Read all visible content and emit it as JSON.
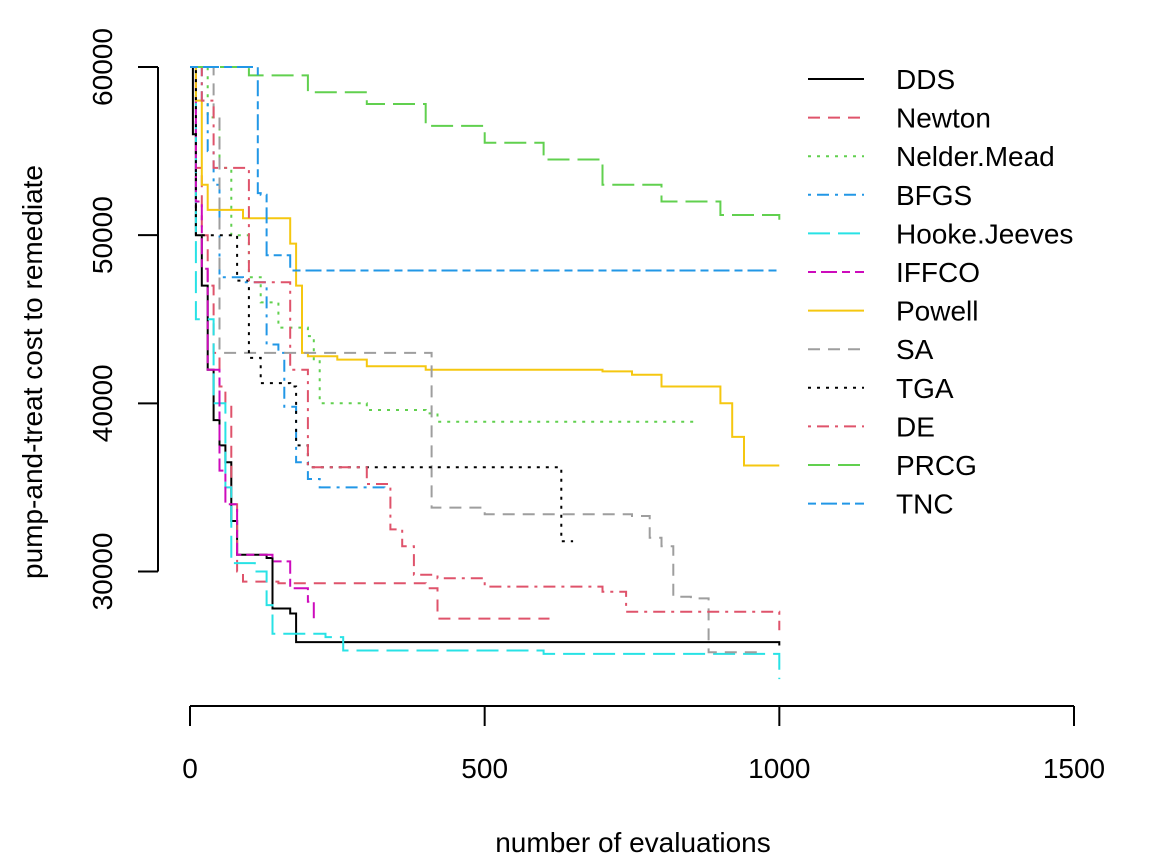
{
  "chart_data": {
    "type": "line",
    "title": "",
    "xlabel": "number of evaluations",
    "ylabel": "pump-and-treat cost to remediate",
    "xlim": [
      0,
      1500
    ],
    "ylim": [
      22000,
      60000
    ],
    "xticks": [
      0,
      500,
      1000,
      1500
    ],
    "yticks": [
      30000,
      40000,
      50000,
      60000
    ],
    "x_tick_labels": [
      "0",
      "500",
      "1000",
      "1500"
    ],
    "y_tick_labels": [
      "30000",
      "40000",
      "50000",
      "60000"
    ],
    "grid": false,
    "legend_position": "top-right",
    "series": [
      {
        "name": "DDS",
        "color": "#000000",
        "dash": "solid",
        "points": [
          [
            0,
            60000
          ],
          [
            5,
            56000
          ],
          [
            10,
            50000
          ],
          [
            20,
            47000
          ],
          [
            30,
            42000
          ],
          [
            40,
            39000
          ],
          [
            50,
            37500
          ],
          [
            60,
            36500
          ],
          [
            70,
            33000
          ],
          [
            80,
            31000
          ],
          [
            130,
            30800
          ],
          [
            140,
            27800
          ],
          [
            170,
            27500
          ],
          [
            180,
            25800
          ],
          [
            1000,
            25600
          ]
        ]
      },
      {
        "name": "Newton",
        "color": "#DF536B",
        "dash": "dashed",
        "points": [
          [
            0,
            60000
          ],
          [
            10,
            54000
          ],
          [
            20,
            50000
          ],
          [
            30,
            47000
          ],
          [
            40,
            43000
          ],
          [
            50,
            41000
          ],
          [
            60,
            40000
          ],
          [
            70,
            34000
          ],
          [
            80,
            30000
          ],
          [
            90,
            29400
          ],
          [
            150,
            29300
          ],
          [
            400,
            29000
          ],
          [
            420,
            27200
          ],
          [
            610,
            27200
          ]
        ]
      },
      {
        "name": "Nelder.Mead",
        "color": "#61D04F",
        "dash": "dotted",
        "points": [
          [
            0,
            60000
          ],
          [
            30,
            57000
          ],
          [
            50,
            54000
          ],
          [
            70,
            50000
          ],
          [
            100,
            47500
          ],
          [
            120,
            46000
          ],
          [
            150,
            44500
          ],
          [
            200,
            44000
          ],
          [
            210,
            42500
          ],
          [
            220,
            40000
          ],
          [
            300,
            39600
          ],
          [
            400,
            39400
          ],
          [
            420,
            38900
          ],
          [
            860,
            38800
          ]
        ]
      },
      {
        "name": "BFGS",
        "color": "#2297E6",
        "dash": "dashdot",
        "points": [
          [
            0,
            60000
          ],
          [
            20,
            58000
          ],
          [
            30,
            55000
          ],
          [
            40,
            53000
          ],
          [
            50,
            47500
          ],
          [
            80,
            47500
          ],
          [
            90,
            47200
          ],
          [
            120,
            47200
          ],
          [
            130,
            43500
          ],
          [
            150,
            43000
          ],
          [
            160,
            39800
          ],
          [
            180,
            36500
          ],
          [
            200,
            35500
          ],
          [
            220,
            35000
          ],
          [
            330,
            34900
          ]
        ]
      },
      {
        "name": "Hooke.Jeeves",
        "color": "#28E2E5",
        "dash": "longdash",
        "points": [
          [
            0,
            60000
          ],
          [
            10,
            45000
          ],
          [
            30,
            45000
          ],
          [
            40,
            40000
          ],
          [
            60,
            35000
          ],
          [
            70,
            30500
          ],
          [
            110,
            30000
          ],
          [
            130,
            28000
          ],
          [
            140,
            26300
          ],
          [
            230,
            26100
          ],
          [
            260,
            25300
          ],
          [
            600,
            25100
          ],
          [
            1000,
            23600
          ]
        ]
      },
      {
        "name": "IFFCO",
        "color": "#CD0BBC",
        "dash": "twodash",
        "points": [
          [
            0,
            60000
          ],
          [
            10,
            52000
          ],
          [
            20,
            48000
          ],
          [
            30,
            42000
          ],
          [
            50,
            36000
          ],
          [
            60,
            34000
          ],
          [
            80,
            31000
          ],
          [
            140,
            30600
          ],
          [
            170,
            29000
          ],
          [
            200,
            28200
          ],
          [
            210,
            27100
          ]
        ]
      },
      {
        "name": "Powell",
        "color": "#F5C710",
        "dash": "solid",
        "points": [
          [
            0,
            60000
          ],
          [
            10,
            58000
          ],
          [
            20,
            53000
          ],
          [
            30,
            51500
          ],
          [
            90,
            51000
          ],
          [
            160,
            51000
          ],
          [
            170,
            49500
          ],
          [
            180,
            47000
          ],
          [
            190,
            43000
          ],
          [
            200,
            42800
          ],
          [
            250,
            42600
          ],
          [
            300,
            42200
          ],
          [
            400,
            42000
          ],
          [
            700,
            41900
          ],
          [
            750,
            41700
          ],
          [
            800,
            41000
          ],
          [
            880,
            41000
          ],
          [
            900,
            40000
          ],
          [
            920,
            38000
          ],
          [
            940,
            36300
          ],
          [
            1000,
            36300
          ]
        ]
      },
      {
        "name": "SA",
        "color": "#9E9E9E",
        "dash": "dashed",
        "points": [
          [
            0,
            60000
          ],
          [
            40,
            57000
          ],
          [
            50,
            43000
          ],
          [
            100,
            43000
          ],
          [
            400,
            43000
          ],
          [
            410,
            33800
          ],
          [
            500,
            33400
          ],
          [
            750,
            33300
          ],
          [
            780,
            32000
          ],
          [
            800,
            31500
          ],
          [
            820,
            28500
          ],
          [
            850,
            28400
          ],
          [
            880,
            25200
          ],
          [
            960,
            25000
          ]
        ]
      },
      {
        "name": "TGA",
        "color": "#000000",
        "dash": "dotted",
        "points": [
          [
            0,
            60000
          ],
          [
            10,
            50000
          ],
          [
            70,
            50000
          ],
          [
            80,
            47300
          ],
          [
            100,
            42700
          ],
          [
            120,
            41200
          ],
          [
            170,
            41000
          ],
          [
            180,
            37500
          ],
          [
            200,
            36200
          ],
          [
            620,
            36200
          ],
          [
            630,
            31800
          ],
          [
            650,
            31800
          ]
        ]
      },
      {
        "name": "DE",
        "color": "#DF536B",
        "dash": "dashdot",
        "points": [
          [
            0,
            60000
          ],
          [
            20,
            58000
          ],
          [
            40,
            54000
          ],
          [
            90,
            54000
          ],
          [
            100,
            47200
          ],
          [
            140,
            47200
          ],
          [
            170,
            42000
          ],
          [
            200,
            36200
          ],
          [
            260,
            36200
          ],
          [
            300,
            35200
          ],
          [
            340,
            32500
          ],
          [
            360,
            31500
          ],
          [
            380,
            29800
          ],
          [
            420,
            29600
          ],
          [
            500,
            29100
          ],
          [
            700,
            28800
          ],
          [
            740,
            27600
          ],
          [
            1000,
            26500
          ]
        ]
      },
      {
        "name": "PRCG",
        "color": "#61D04F",
        "dash": "longdash",
        "points": [
          [
            0,
            60000
          ],
          [
            100,
            59500
          ],
          [
            200,
            58500
          ],
          [
            300,
            57800
          ],
          [
            400,
            56500
          ],
          [
            500,
            55500
          ],
          [
            600,
            54500
          ],
          [
            700,
            53000
          ],
          [
            800,
            52000
          ],
          [
            900,
            51200
          ],
          [
            1000,
            50800
          ]
        ]
      },
      {
        "name": "TNC",
        "color": "#2297E6",
        "dash": "twodash",
        "points": [
          [
            0,
            60000
          ],
          [
            110,
            60000
          ],
          [
            115,
            52500
          ],
          [
            120,
            52400
          ],
          [
            130,
            48800
          ],
          [
            150,
            48800
          ],
          [
            170,
            47900
          ],
          [
            1000,
            47900
          ]
        ]
      }
    ]
  }
}
